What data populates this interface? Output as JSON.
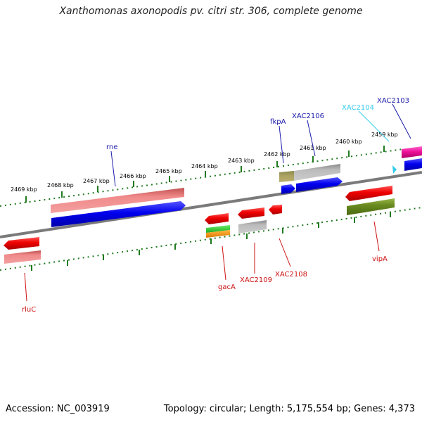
{
  "title": "Xanthomonas axonopodis pv. citri str. 306, complete genome",
  "footer": {
    "accession": "Accession: NC_003919",
    "stats": "Topology: circular; Length: 5,175,554 bp; Genes: 4,373"
  },
  "scale_labels": [
    "2469 kbp",
    "2468 kbp",
    "2467 kbp",
    "2466 kbp",
    "2465 kbp",
    "2464 kbp",
    "2463 kbp",
    "2462 kbp",
    "2461 kbp",
    "2460 kbp",
    "2459 kbp"
  ],
  "genes": [
    {
      "name": "rne",
      "strand": "forward",
      "color": "#1a1aaa"
    },
    {
      "name": "fkpA",
      "strand": "forward",
      "color": "#1a1aaa"
    },
    {
      "name": "XAC2106",
      "strand": "forward",
      "color": "#1a1aaa"
    },
    {
      "name": "XAC2104",
      "strand": "forward",
      "color": "#33ccee"
    },
    {
      "name": "XAC2103",
      "strand": "forward",
      "color": "#1a1aaa"
    },
    {
      "name": "rluC",
      "strand": "reverse",
      "color": "#cc1111"
    },
    {
      "name": "gacA",
      "strand": "reverse",
      "color": "#cc1111"
    },
    {
      "name": "XAC2109",
      "strand": "reverse",
      "color": "#cc1111"
    },
    {
      "name": "XAC2108",
      "strand": "reverse",
      "color": "#cc1111"
    },
    {
      "name": "vipA",
      "strand": "reverse",
      "color": "#cc1111"
    }
  ],
  "colors": {
    "backbone": "#7a7a7a",
    "tick": "#1f7a1f",
    "forward_cds": "#0000ee",
    "reverse_cds": "#ee0000"
  }
}
